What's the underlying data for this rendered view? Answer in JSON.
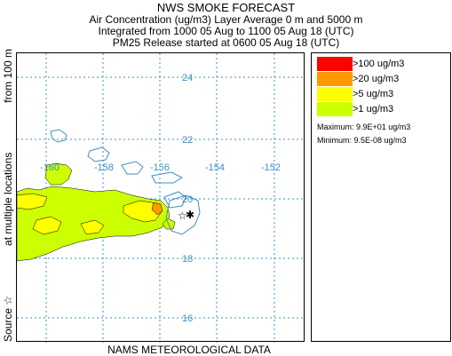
{
  "header": {
    "title": "NWS SMOKE FORECAST",
    "line2": "Air Concentration (ug/m3) Layer Average    0 m and  5000 m",
    "line3": "Integrated from 1000 05 Aug to 1100 05 Aug 18 (UTC)",
    "line4": "PM25 Release started at 0600 05 Aug 18 (UTC)"
  },
  "map": {
    "latitude_labels": [
      "24",
      "22",
      "20",
      "18",
      "16"
    ],
    "longitude_labels": [
      "-160",
      "-158",
      "-156",
      "-154",
      "-152"
    ],
    "grid_color": "#3f8fbf",
    "coast_color": "#3f8fbf"
  },
  "legend": {
    "items": [
      {
        "label": ">100 ug/m3",
        "color": "#ff0000"
      },
      {
        "label": ">20 ug/m3",
        "color": "#ff9900"
      },
      {
        "label": ">5 ug/m3",
        "color": "#ffff00"
      },
      {
        "label": ">1 ug/m3",
        "color": "#ccff00"
      }
    ],
    "maximum": "Maximum: 9.9E+01 ug/m3",
    "minimum": "Minimum: 9.5E-08 ug/m3"
  },
  "side_label": {
    "part1": "Source ☆",
    "part2": "at multiple locations",
    "part3": "from   100 m"
  },
  "bottom_label": "NAMS METEOROLOGICAL DATA"
}
